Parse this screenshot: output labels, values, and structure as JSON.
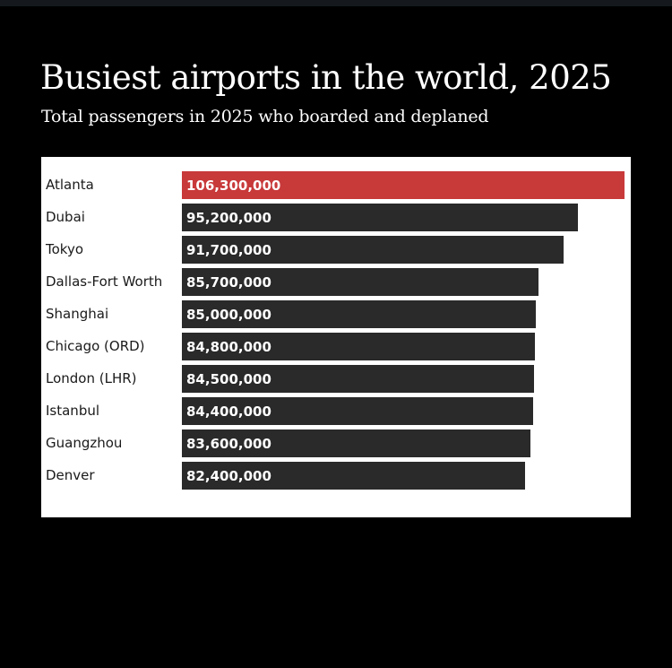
{
  "header": {
    "title": "Busiest airports in the world, 2025",
    "subtitle": "Total passengers in 2025 who boarded and deplaned"
  },
  "colors": {
    "highlight": "#c8393a",
    "bar": "#2a2a2a",
    "background": "#000000",
    "panel": "#ffffff"
  },
  "chart_data": {
    "type": "bar",
    "orientation": "horizontal",
    "title": "Busiest airports in the world, 2025",
    "subtitle": "Total passengers in 2025 who boarded and deplaned",
    "categories": [
      "Atlanta",
      "Dubai",
      "Tokyo",
      "Dallas-Fort Worth",
      "Shanghai",
      "Chicago (ORD)",
      "London (LHR)",
      "Istanbul",
      "Guangzhou",
      "Denver"
    ],
    "values": [
      106300000,
      95200000,
      91700000,
      85700000,
      85000000,
      84800000,
      84500000,
      84400000,
      83600000,
      82400000
    ],
    "value_labels": [
      "106,300,000",
      "95,200,000",
      "91,700,000",
      "85,700,000",
      "85,000,000",
      "84,800,000",
      "84,500,000",
      "84,400,000",
      "83,600,000",
      "82,400,000"
    ],
    "highlighted_category": "Atlanta",
    "xlim": [
      0,
      106300000
    ],
    "grid": false,
    "legend": "none"
  }
}
